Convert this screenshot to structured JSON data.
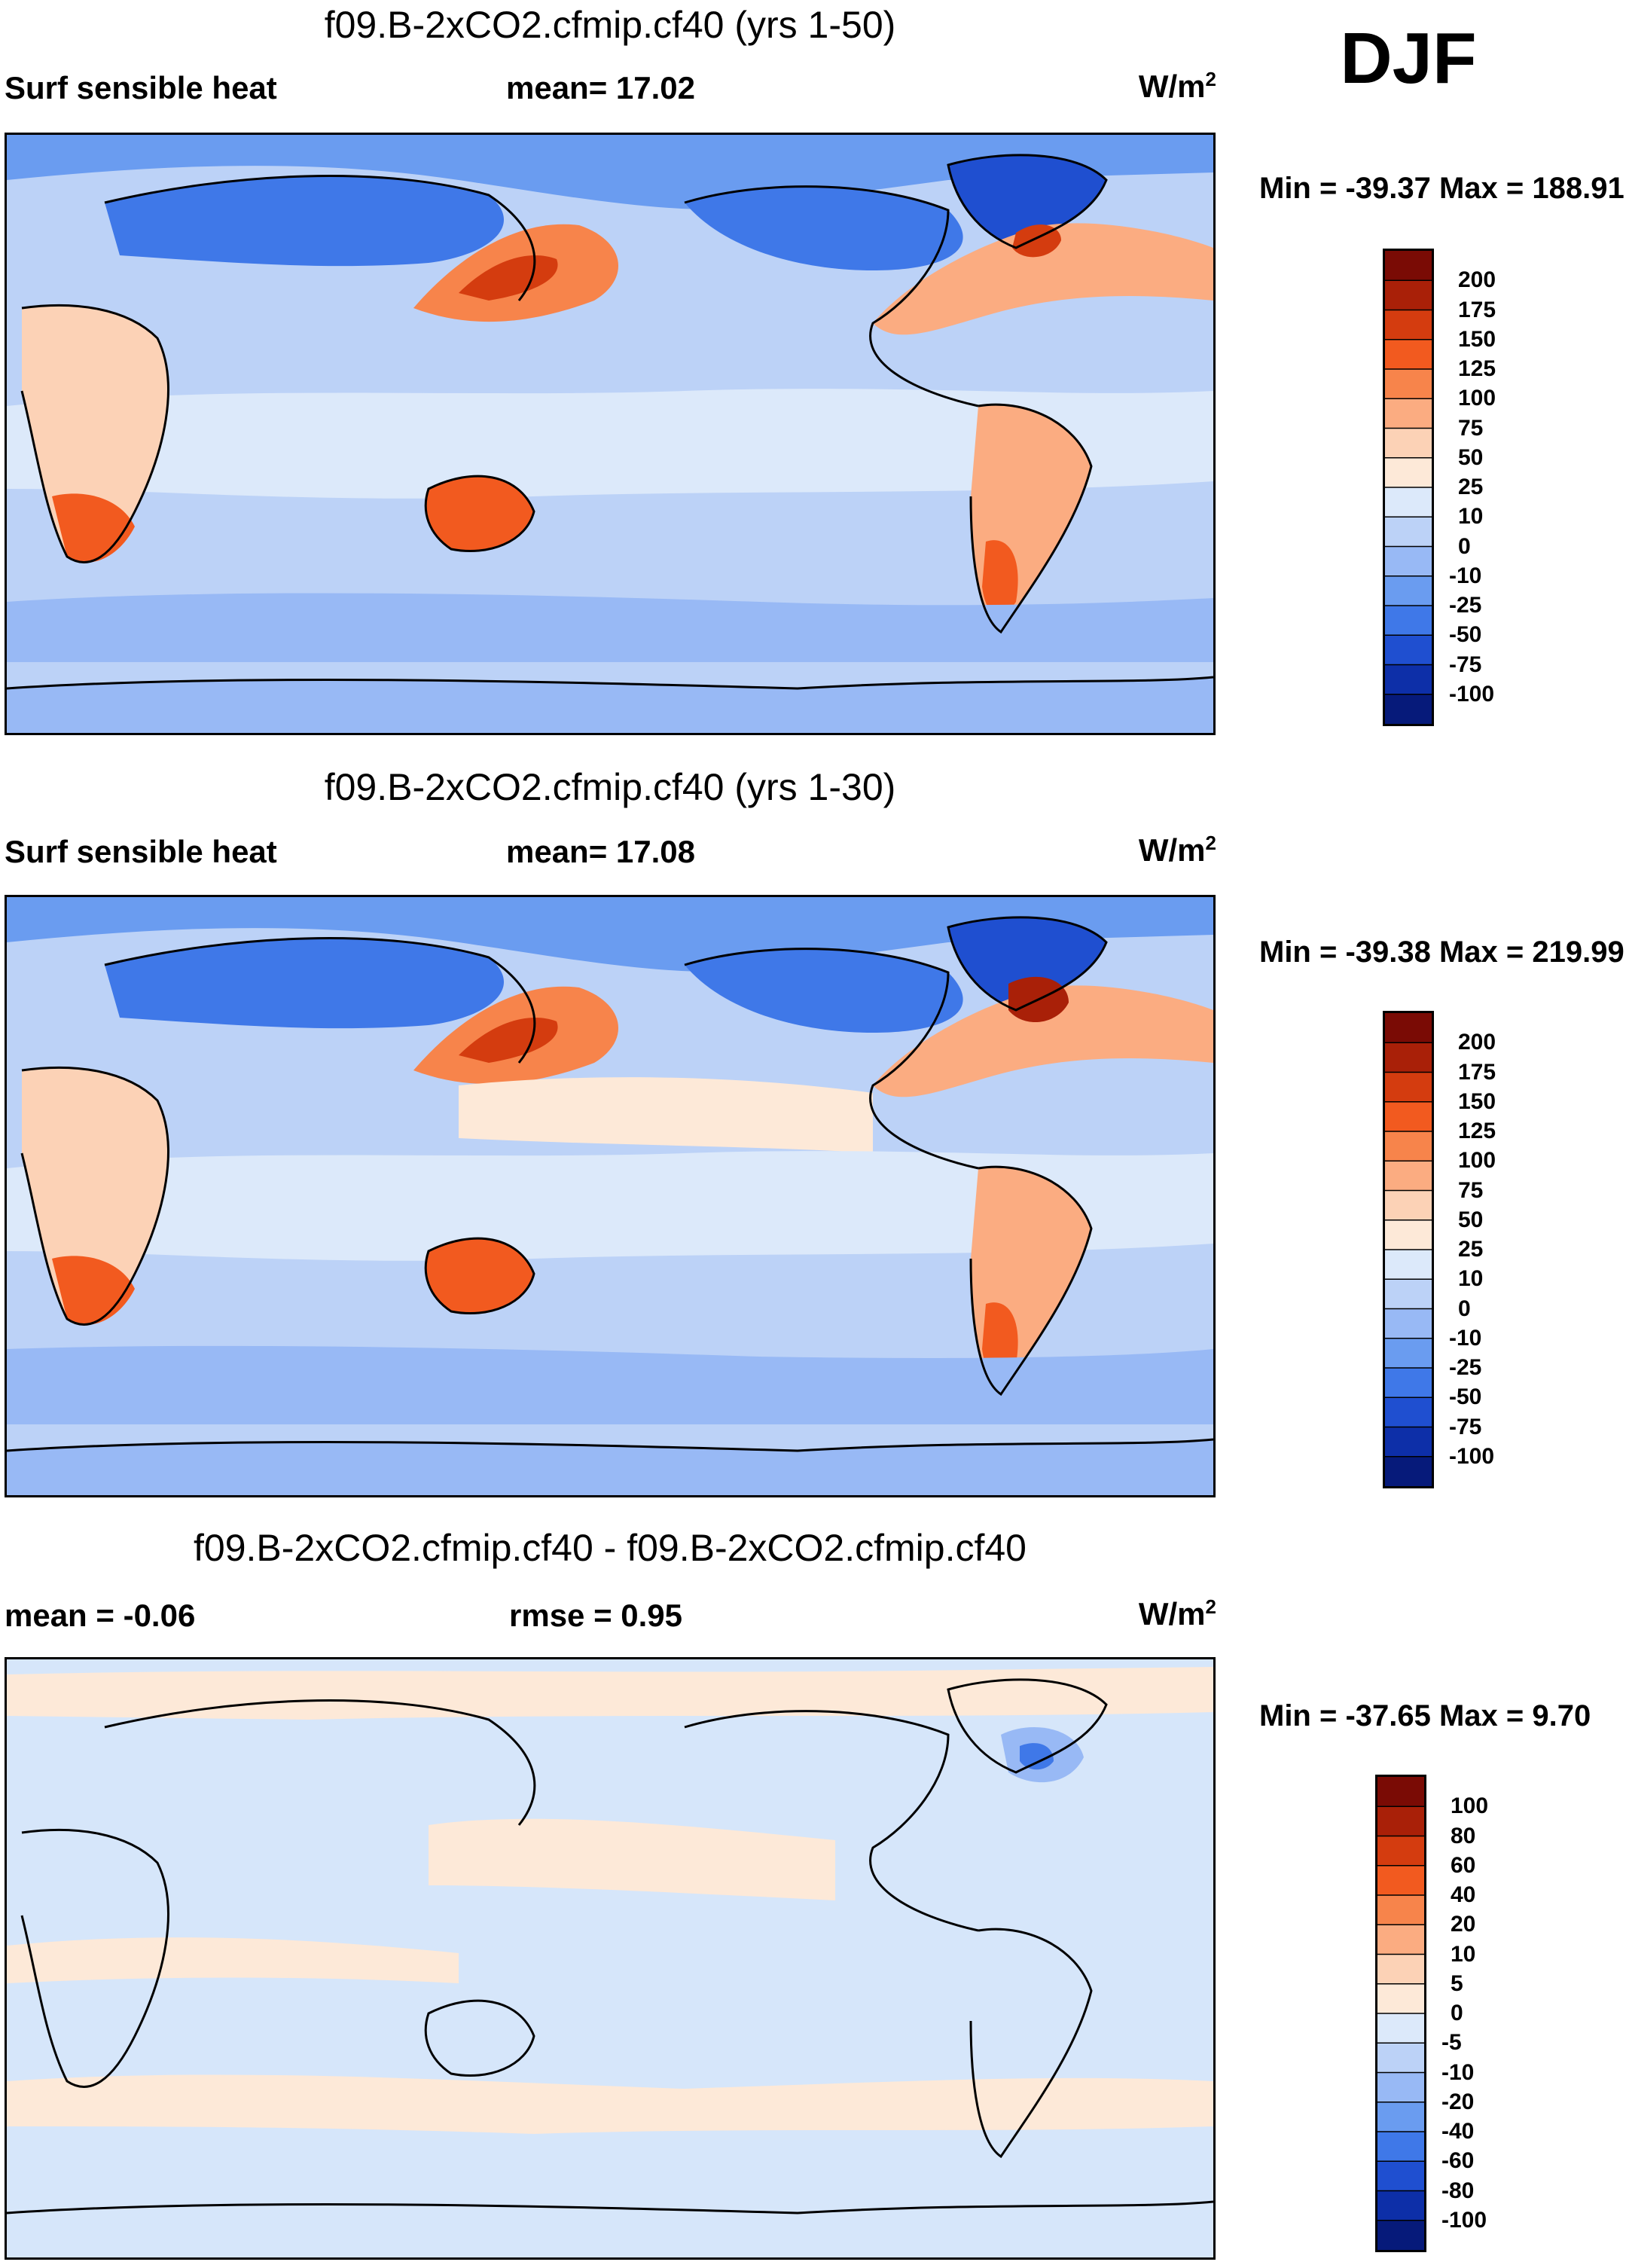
{
  "season": "DJF",
  "panels": [
    {
      "title": "f09.B-2xCO2.cfmip.cf40 (yrs 1-50)",
      "left_label": "Surf sensible heat",
      "mid_label": "mean=  17.02",
      "units_base": "W/m",
      "units_exp": "2",
      "minmax": "Min = -39.37 Max = 188.91",
      "base_fill": "#bcd2f7",
      "colorbar": {
        "labels": [
          "200",
          "175",
          "150",
          "125",
          "100",
          "75",
          "50",
          "25",
          "10",
          "0",
          "-10",
          "-25",
          "-50",
          "-75",
          "-100"
        ],
        "colors": [
          "#7a0b05",
          "#a92008",
          "#d43c0f",
          "#f25a1f",
          "#f7844b",
          "#fbac81",
          "#fcd2b6",
          "#fde9d8",
          "#dce9fa",
          "#bcd2f7",
          "#98b9f5",
          "#6a9cf0",
          "#3f78e8",
          "#1f4fd0",
          "#0d2fa8",
          "#061a7a"
        ]
      }
    },
    {
      "title": "f09.B-2xCO2.cfmip.cf40 (yrs 1-30)",
      "left_label": "Surf sensible heat",
      "mid_label": "mean=  17.08",
      "units_base": "W/m",
      "units_exp": "2",
      "minmax": "Min = -39.38 Max = 219.99",
      "base_fill": "#bcd2f7",
      "colorbar": {
        "labels": [
          "200",
          "175",
          "150",
          "125",
          "100",
          "75",
          "50",
          "25",
          "10",
          "0",
          "-10",
          "-25",
          "-50",
          "-75",
          "-100"
        ],
        "colors": [
          "#7a0b05",
          "#a92008",
          "#d43c0f",
          "#f25a1f",
          "#f7844b",
          "#fbac81",
          "#fcd2b6",
          "#fde9d8",
          "#dce9fa",
          "#bcd2f7",
          "#98b9f5",
          "#6a9cf0",
          "#3f78e8",
          "#1f4fd0",
          "#0d2fa8",
          "#061a7a"
        ]
      }
    },
    {
      "title": "f09.B-2xCO2.cfmip.cf40 - f09.B-2xCO2.cfmip.cf40",
      "left_label": "mean =  -0.06",
      "mid_label": "rmse =   0.95",
      "units_base": "W/m",
      "units_exp": "2",
      "minmax": "Min = -37.65 Max =   9.70",
      "base_fill": "#d6e6fa",
      "colorbar": {
        "labels": [
          "100",
          "80",
          "60",
          "40",
          "20",
          "10",
          "5",
          "0",
          "-5",
          "-10",
          "-20",
          "-40",
          "-60",
          "-80",
          "-100"
        ],
        "colors": [
          "#7a0b05",
          "#a92008",
          "#d43c0f",
          "#f25a1f",
          "#f7844b",
          "#fbac81",
          "#fcd2b6",
          "#fde9d8",
          "#dce9fa",
          "#bcd2f7",
          "#98b9f5",
          "#6a9cf0",
          "#3f78e8",
          "#1f4fd0",
          "#0d2fa8",
          "#061a7a"
        ]
      }
    }
  ]
}
